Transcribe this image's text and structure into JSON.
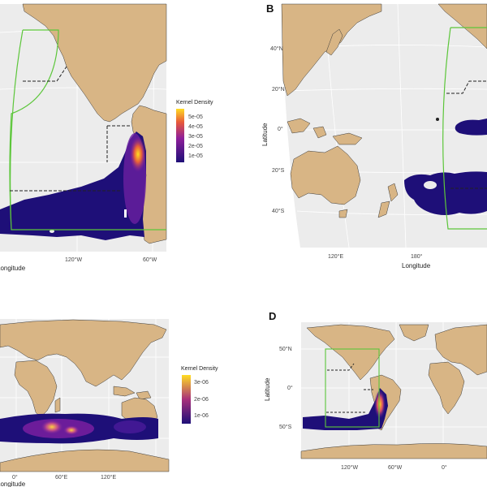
{
  "colors": {
    "ocean": "#ececec",
    "land": "#d8b585",
    "border": "#3a3a3a",
    "study_box": "#5cc63a",
    "dashed": "#222222",
    "density_low": "#1e0f78",
    "density_mid": "#8f1f9a",
    "density_high": "#ffcc22"
  },
  "panels": [
    {
      "label": "",
      "xlabel": "Longitude",
      "ylabel": "",
      "x_ticks": [
        "120°W",
        "60°W"
      ],
      "y_ticks": [],
      "legend": {
        "title": "Kernel Density",
        "values": [
          "5e-05",
          "4e-05",
          "3e-05",
          "2e-05",
          "1e-05"
        ]
      }
    },
    {
      "label": "B",
      "xlabel": "Longitude",
      "ylabel": "Latitude",
      "x_ticks": [
        "120°E",
        "180°"
      ],
      "y_ticks": [
        "40°N",
        "20°N",
        "0°",
        "20°S",
        "40°S"
      ]
    },
    {
      "label": "",
      "xlabel": "Longitude",
      "ylabel": "",
      "x_ticks": [
        "0°",
        "60°E",
        "120°E"
      ],
      "y_ticks": [],
      "legend": {
        "title": "Kernel Density",
        "values": [
          "3e-06",
          "2e-06",
          "1e-06"
        ]
      }
    },
    {
      "label": "D",
      "xlabel": "",
      "ylabel": "Latitude",
      "x_ticks": [
        "120°W",
        "60°W",
        "0°"
      ],
      "y_ticks": [
        "50°N",
        "0°",
        "50°S"
      ]
    }
  ]
}
